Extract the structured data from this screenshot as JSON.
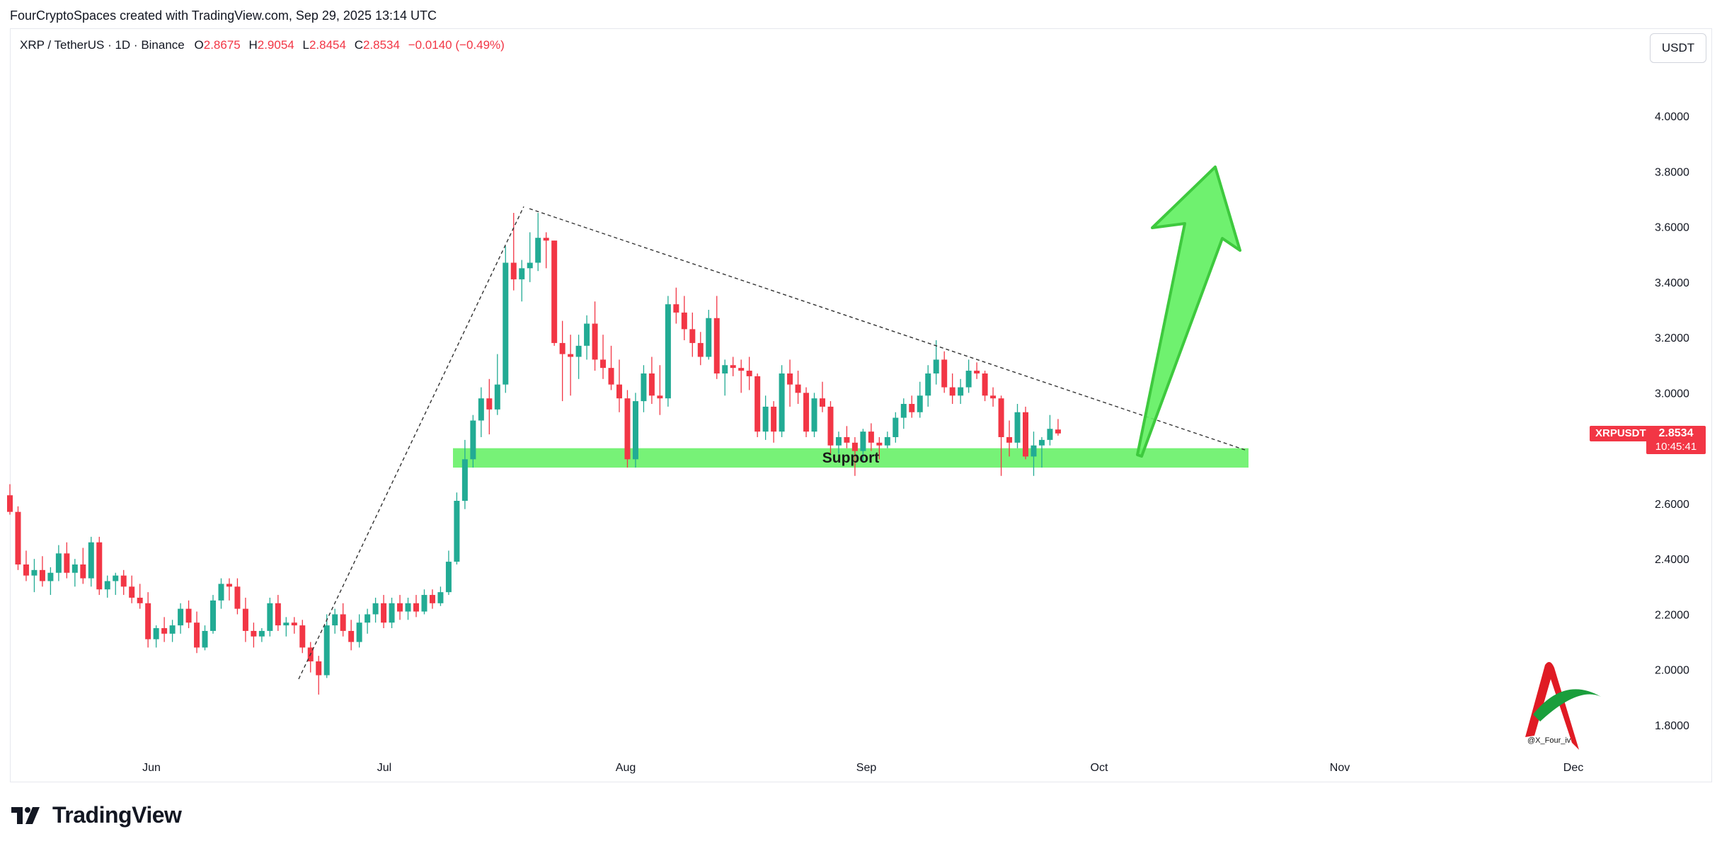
{
  "header": {
    "attribution": "FourCryptoSpaces created with TradingView.com, Sep 29, 2025 13:14 UTC"
  },
  "legend": {
    "symbol_line": "XRP / TetherUS · 1D · Binance",
    "o_label": "O",
    "o_value": "2.8675",
    "h_label": "H",
    "h_value": "2.9054",
    "l_label": "L",
    "l_value": "2.8454",
    "c_label": "C",
    "c_value": "2.8534",
    "change": "−0.0140 (−0.49%)"
  },
  "currency_button": "USDT",
  "price_scale": {
    "ticks": [
      "4.0000",
      "3.8000",
      "3.6000",
      "3.4000",
      "3.2000",
      "3.0000",
      "2.6000",
      "2.4000",
      "2.2000",
      "2.0000",
      "1.8000"
    ]
  },
  "time_scale": {
    "ticks": [
      "Jun",
      "Jul",
      "Aug",
      "Sep",
      "Oct",
      "Nov",
      "Dec"
    ]
  },
  "last_price": {
    "symbol": "XRPUSDT",
    "price": "2.8534",
    "countdown": "10:45:41"
  },
  "annotations": {
    "support_label": "Support",
    "watermark_handle": "@X_Four_iv"
  },
  "footer": {
    "brand": "TradingView"
  },
  "colors": {
    "up": "#22ab94",
    "down": "#f23645",
    "support_zone": "#5ff05f",
    "arrow": "#5ff05f"
  },
  "chart_data": {
    "type": "candlestick",
    "symbol": "XRP / TetherUS",
    "interval": "1D",
    "exchange": "Binance",
    "ylim": [
      1.75,
      4.2
    ],
    "support_zone": [
      2.73,
      2.8
    ],
    "candles": [
      [
        2.63,
        2.67,
        2.56,
        2.57
      ],
      [
        2.57,
        2.59,
        2.36,
        2.38
      ],
      [
        2.38,
        2.43,
        2.32,
        2.34
      ],
      [
        2.34,
        2.4,
        2.28,
        2.36
      ],
      [
        2.36,
        2.41,
        2.3,
        2.32
      ],
      [
        2.32,
        2.37,
        2.27,
        2.35
      ],
      [
        2.35,
        2.45,
        2.32,
        2.42
      ],
      [
        2.42,
        2.46,
        2.33,
        2.35
      ],
      [
        2.35,
        2.4,
        2.3,
        2.38
      ],
      [
        2.38,
        2.44,
        2.31,
        2.33
      ],
      [
        2.33,
        2.48,
        2.3,
        2.46
      ],
      [
        2.46,
        2.48,
        2.27,
        2.29
      ],
      [
        2.29,
        2.34,
        2.26,
        2.32
      ],
      [
        2.32,
        2.35,
        2.27,
        2.34
      ],
      [
        2.34,
        2.36,
        2.27,
        2.3
      ],
      [
        2.3,
        2.34,
        2.24,
        2.26
      ],
      [
        2.26,
        2.31,
        2.22,
        2.24
      ],
      [
        2.24,
        2.28,
        2.08,
        2.11
      ],
      [
        2.11,
        2.16,
        2.08,
        2.15
      ],
      [
        2.15,
        2.19,
        2.1,
        2.13
      ],
      [
        2.13,
        2.18,
        2.1,
        2.16
      ],
      [
        2.16,
        2.24,
        2.13,
        2.22
      ],
      [
        2.22,
        2.25,
        2.15,
        2.17
      ],
      [
        2.17,
        2.21,
        2.06,
        2.08
      ],
      [
        2.08,
        2.16,
        2.07,
        2.14
      ],
      [
        2.14,
        2.27,
        2.13,
        2.25
      ],
      [
        2.25,
        2.33,
        2.22,
        2.31
      ],
      [
        2.31,
        2.33,
        2.25,
        2.3
      ],
      [
        2.3,
        2.33,
        2.2,
        2.22
      ],
      [
        2.22,
        2.26,
        2.1,
        2.14
      ],
      [
        2.14,
        2.17,
        2.08,
        2.12
      ],
      [
        2.12,
        2.15,
        2.1,
        2.14
      ],
      [
        2.14,
        2.26,
        2.12,
        2.24
      ],
      [
        2.24,
        2.27,
        2.14,
        2.16
      ],
      [
        2.16,
        2.19,
        2.12,
        2.17
      ],
      [
        2.17,
        2.19,
        2.13,
        2.16
      ],
      [
        2.16,
        2.18,
        2.06,
        2.08
      ],
      [
        2.08,
        2.1,
        1.99,
        2.03
      ],
      [
        2.03,
        2.05,
        1.91,
        1.98
      ],
      [
        1.98,
        2.2,
        1.97,
        2.16
      ],
      [
        2.16,
        2.22,
        2.13,
        2.2
      ],
      [
        2.2,
        2.24,
        2.12,
        2.14
      ],
      [
        2.14,
        2.18,
        2.07,
        2.1
      ],
      [
        2.1,
        2.2,
        2.08,
        2.17
      ],
      [
        2.17,
        2.22,
        2.13,
        2.2
      ],
      [
        2.2,
        2.26,
        2.17,
        2.24
      ],
      [
        2.24,
        2.27,
        2.15,
        2.17
      ],
      [
        2.17,
        2.26,
        2.15,
        2.24
      ],
      [
        2.24,
        2.27,
        2.18,
        2.21
      ],
      [
        2.21,
        2.26,
        2.18,
        2.24
      ],
      [
        2.24,
        2.27,
        2.19,
        2.21
      ],
      [
        2.21,
        2.29,
        2.2,
        2.27
      ],
      [
        2.27,
        2.29,
        2.22,
        2.24
      ],
      [
        2.24,
        2.3,
        2.23,
        2.28
      ],
      [
        2.28,
        2.43,
        2.27,
        2.39
      ],
      [
        2.39,
        2.64,
        2.38,
        2.61
      ],
      [
        2.61,
        2.83,
        2.58,
        2.76
      ],
      [
        2.76,
        2.92,
        2.73,
        2.9
      ],
      [
        2.9,
        3.02,
        2.84,
        2.98
      ],
      [
        2.98,
        3.05,
        2.85,
        2.94
      ],
      [
        2.94,
        3.14,
        2.92,
        3.03
      ],
      [
        3.03,
        3.53,
        3.0,
        3.47
      ],
      [
        3.47,
        3.65,
        3.37,
        3.41
      ],
      [
        3.41,
        3.48,
        3.33,
        3.45
      ],
      [
        3.45,
        3.58,
        3.4,
        3.47
      ],
      [
        3.47,
        3.65,
        3.44,
        3.56
      ],
      [
        3.56,
        3.58,
        3.45,
        3.55
      ],
      [
        3.55,
        3.55,
        3.17,
        3.18
      ],
      [
        3.18,
        3.26,
        2.97,
        3.14
      ],
      [
        3.14,
        3.21,
        2.99,
        3.13
      ],
      [
        3.13,
        3.21,
        3.05,
        3.17
      ],
      [
        3.17,
        3.28,
        3.12,
        3.25
      ],
      [
        3.25,
        3.33,
        3.08,
        3.12
      ],
      [
        3.12,
        3.21,
        3.05,
        3.09
      ],
      [
        3.09,
        3.17,
        3.01,
        3.03
      ],
      [
        3.03,
        3.12,
        2.93,
        2.98
      ],
      [
        2.98,
        3.01,
        2.73,
        2.76
      ],
      [
        2.76,
        3.0,
        2.73,
        2.97
      ],
      [
        2.97,
        3.1,
        2.93,
        3.07
      ],
      [
        3.07,
        3.13,
        2.96,
        2.99
      ],
      [
        2.99,
        3.1,
        2.92,
        2.98
      ],
      [
        2.98,
        3.35,
        2.95,
        3.32
      ],
      [
        3.32,
        3.38,
        3.25,
        3.29
      ],
      [
        3.29,
        3.35,
        3.19,
        3.23
      ],
      [
        3.23,
        3.29,
        3.13,
        3.18
      ],
      [
        3.18,
        3.22,
        3.1,
        3.13
      ],
      [
        3.13,
        3.3,
        3.12,
        3.27
      ],
      [
        3.27,
        3.35,
        3.05,
        3.07
      ],
      [
        3.07,
        3.12,
        2.99,
        3.1
      ],
      [
        3.1,
        3.13,
        3.06,
        3.09
      ],
      [
        3.09,
        3.12,
        3.0,
        3.08
      ],
      [
        3.08,
        3.13,
        3.01,
        3.06
      ],
      [
        3.06,
        3.07,
        2.84,
        2.86
      ],
      [
        2.86,
        2.99,
        2.83,
        2.95
      ],
      [
        2.95,
        2.97,
        2.82,
        2.86
      ],
      [
        2.86,
        3.1,
        2.84,
        3.07
      ],
      [
        3.07,
        3.12,
        2.95,
        3.03
      ],
      [
        3.03,
        3.08,
        2.96,
        3.0
      ],
      [
        3.0,
        3.02,
        2.84,
        2.86
      ],
      [
        2.86,
        3.0,
        2.84,
        2.98
      ],
      [
        2.98,
        3.04,
        2.93,
        2.95
      ],
      [
        2.95,
        2.97,
        2.78,
        2.81
      ],
      [
        2.81,
        2.86,
        2.78,
        2.84
      ],
      [
        2.84,
        2.88,
        2.8,
        2.82
      ],
      [
        2.82,
        2.84,
        2.7,
        2.79
      ],
      [
        2.79,
        2.87,
        2.75,
        2.86
      ],
      [
        2.86,
        2.89,
        2.79,
        2.82
      ],
      [
        2.82,
        2.84,
        2.76,
        2.81
      ],
      [
        2.81,
        2.86,
        2.8,
        2.84
      ],
      [
        2.84,
        2.93,
        2.82,
        2.91
      ],
      [
        2.91,
        2.98,
        2.87,
        2.96
      ],
      [
        2.96,
        2.99,
        2.91,
        2.93
      ],
      [
        2.93,
        3.04,
        2.91,
        2.99
      ],
      [
        2.99,
        3.1,
        2.95,
        3.07
      ],
      [
        3.07,
        3.19,
        3.03,
        3.12
      ],
      [
        3.12,
        3.15,
        3.0,
        3.02
      ],
      [
        3.02,
        3.07,
        2.96,
        2.99
      ],
      [
        2.99,
        3.05,
        2.96,
        3.02
      ],
      [
        3.02,
        3.12,
        3.0,
        3.08
      ],
      [
        3.08,
        3.11,
        3.05,
        3.07
      ],
      [
        3.07,
        3.08,
        2.97,
        2.99
      ],
      [
        2.99,
        3.02,
        2.95,
        2.98
      ],
      [
        2.98,
        2.99,
        2.7,
        2.84
      ],
      [
        2.84,
        2.9,
        2.77,
        2.82
      ],
      [
        2.82,
        2.96,
        2.8,
        2.93
      ],
      [
        2.93,
        2.95,
        2.76,
        2.77
      ],
      [
        2.77,
        2.86,
        2.7,
        2.81
      ],
      [
        2.81,
        2.84,
        2.73,
        2.83
      ],
      [
        2.83,
        2.92,
        2.81,
        2.87
      ],
      [
        2.8675,
        2.9054,
        2.8454,
        2.8534
      ]
    ]
  }
}
